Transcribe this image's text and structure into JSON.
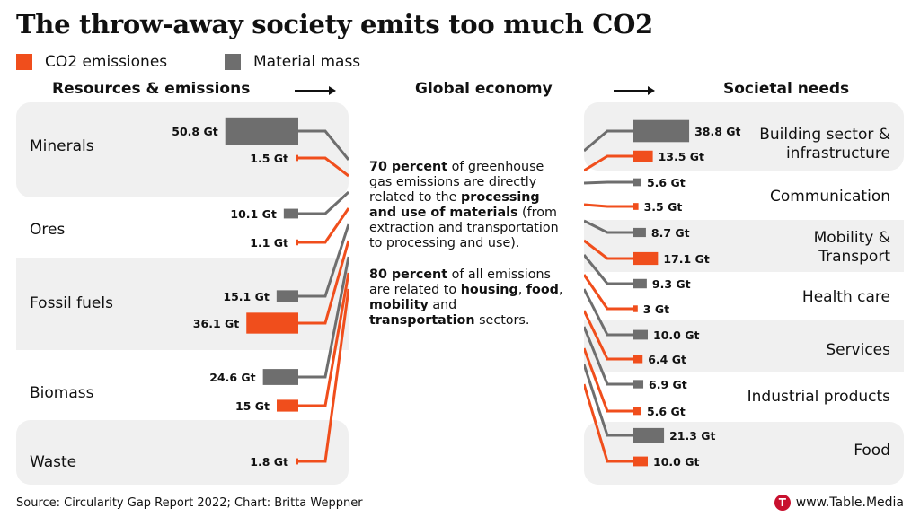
{
  "title": "The throw-away society emits too much CO2",
  "legend": [
    {
      "label": "CO2 emissiones",
      "color": "#f04e1c"
    },
    {
      "label": "Material mass",
      "color": "#6e6e6e"
    }
  ],
  "headers": {
    "left": "Resources & emissions",
    "center": "Global economy",
    "right": "Societal needs"
  },
  "center_text": {
    "p1": [
      {
        "text": "70 percent",
        "bold": true
      },
      {
        "text": " of greenhouse gas emissions are directly related to the ",
        "bold": false
      },
      {
        "text": "processing and use of materials",
        "bold": true
      },
      {
        "text": " (from extraction and transportation to processing and use).",
        "bold": false
      }
    ],
    "p2": [
      {
        "text": "80 percent",
        "bold": true
      },
      {
        "text": " of all emissions are related to ",
        "bold": false
      },
      {
        "text": "housing",
        "bold": true
      },
      {
        "text": ", ",
        "bold": false
      },
      {
        "text": "food",
        "bold": true
      },
      {
        "text": ", ",
        "bold": false
      },
      {
        "text": "mobility",
        "bold": true
      },
      {
        "text": " and ",
        "bold": false
      },
      {
        "text": "transportation",
        "bold": true
      },
      {
        "text": " sectors.",
        "bold": false
      }
    ]
  },
  "source": "Source: Circularity Gap Report 2022; Chart: Britta Weppner",
  "brand": {
    "logo_letter": "T",
    "text": "www.Table.Media"
  },
  "colors": {
    "co2": "#f04e1c",
    "material": "#6e6e6e",
    "band": "#f0f0f0"
  },
  "chart_data": {
    "type": "bar",
    "unit": "Gt",
    "left": {
      "header": "Resources & emissions",
      "categories": [
        "Minerals",
        "Ores",
        "Fossil fuels",
        "Biomass",
        "Waste"
      ],
      "series": [
        {
          "name": "Material mass",
          "values": [
            50.8,
            10.1,
            15.1,
            24.6,
            null
          ],
          "labels": [
            "50.8 Gt",
            "10.1 Gt",
            "15.1 Gt",
            "24.6 Gt",
            null
          ]
        },
        {
          "name": "CO2 emissiones",
          "values": [
            1.5,
            1.1,
            36.1,
            15,
            1.8
          ],
          "labels": [
            "1.5 Gt",
            "1.1 Gt",
            "36.1 Gt",
            "15 Gt",
            "1.8 Gt"
          ]
        }
      ]
    },
    "right": {
      "header": "Societal needs",
      "categories": [
        "Building sector & infrastructure",
        "Communication",
        "Mobility & Transport",
        "Health care",
        "Services",
        "Industrial products",
        "Food"
      ],
      "series": [
        {
          "name": "Material mass",
          "values": [
            38.8,
            5.6,
            8.7,
            9.3,
            10.0,
            6.9,
            21.3
          ],
          "labels": [
            "38.8 Gt",
            "5.6 Gt",
            "8.7 Gt",
            "9.3 Gt",
            "10.0 Gt",
            "6.9 Gt",
            "21.3 Gt"
          ]
        },
        {
          "name": "CO2 emissiones",
          "values": [
            13.5,
            3.5,
            17.1,
            3,
            6.4,
            5.6,
            10.0
          ],
          "labels": [
            "13.5 Gt",
            "3.5 Gt",
            "17.1 Gt",
            "3 Gt",
            "6.4 Gt",
            "5.6 Gt",
            "10.0 Gt"
          ]
        }
      ]
    }
  }
}
